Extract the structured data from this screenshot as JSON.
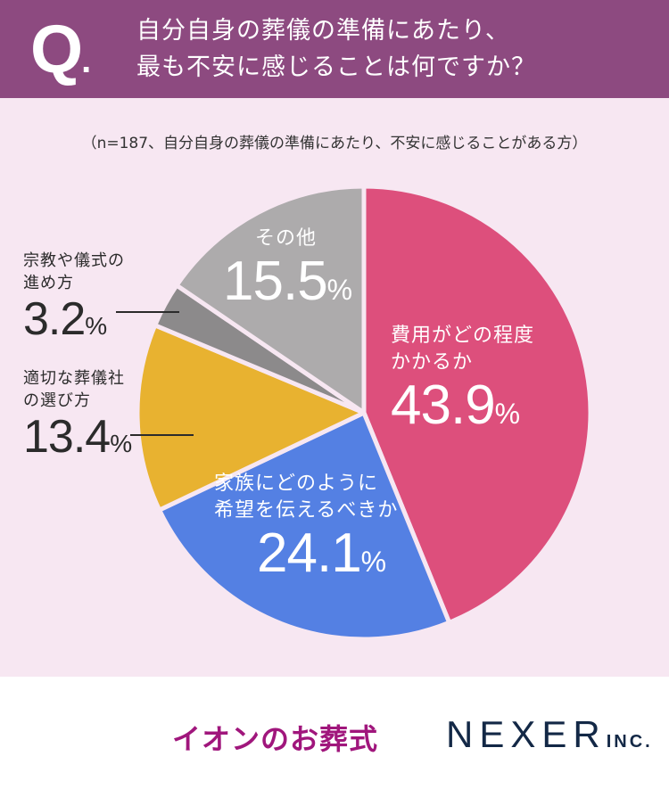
{
  "header": {
    "q_mark": "Q",
    "q_dot": ".",
    "title_line1": "自分自身の葬儀の準備にあたり、",
    "title_line2": "最も不安に感じることは何ですか？"
  },
  "subtitle": "（n=187、自分自身の葬儀の準備にあたり、不安に感じることがある方）",
  "labels": {
    "cost": {
      "cat1": "費用がどの程度",
      "cat2": "かかるか",
      "value": "43.9",
      "unit": "%"
    },
    "family": {
      "cat1": "家族にどのように",
      "cat2": "希望を伝えるべきか",
      "value": "24.1",
      "unit": "%"
    },
    "company": {
      "cat1": "適切な葬儀社",
      "cat2": "の選び方",
      "value": "13.4",
      "unit": "%"
    },
    "religion": {
      "cat1": "宗教や儀式の",
      "cat2": "進め方",
      "value": "3.2",
      "unit": "%"
    },
    "other": {
      "cat1": "その他",
      "value": "15.5",
      "unit": "%"
    }
  },
  "footer": {
    "logo_aeon": "イオンのお葬式",
    "logo_nexer": "NEXER",
    "logo_nexer_inc": "INC."
  },
  "chart_data": {
    "type": "pie",
    "title": "自分自身の葬儀の準備にあたり、最も不安に感じることは何ですか？",
    "subtitle": "（n=187、自分自身の葬儀の準備にあたり、不安に感じることがある方）",
    "start_angle": "12 o'clock, clockwise",
    "categories": [
      "費用がどの程度かかるか",
      "家族にどのように希望を伝えるべきか",
      "適切な葬儀社の選び方",
      "宗教や儀式の進め方",
      "その他"
    ],
    "values": [
      43.9,
      24.1,
      13.4,
      3.2,
      15.5
    ],
    "unit": "%",
    "colors": [
      "#dd4f7c",
      "#5480e3",
      "#e8b230",
      "#8c8a8b",
      "#adabac"
    ],
    "legend": "none (direct labels)"
  }
}
